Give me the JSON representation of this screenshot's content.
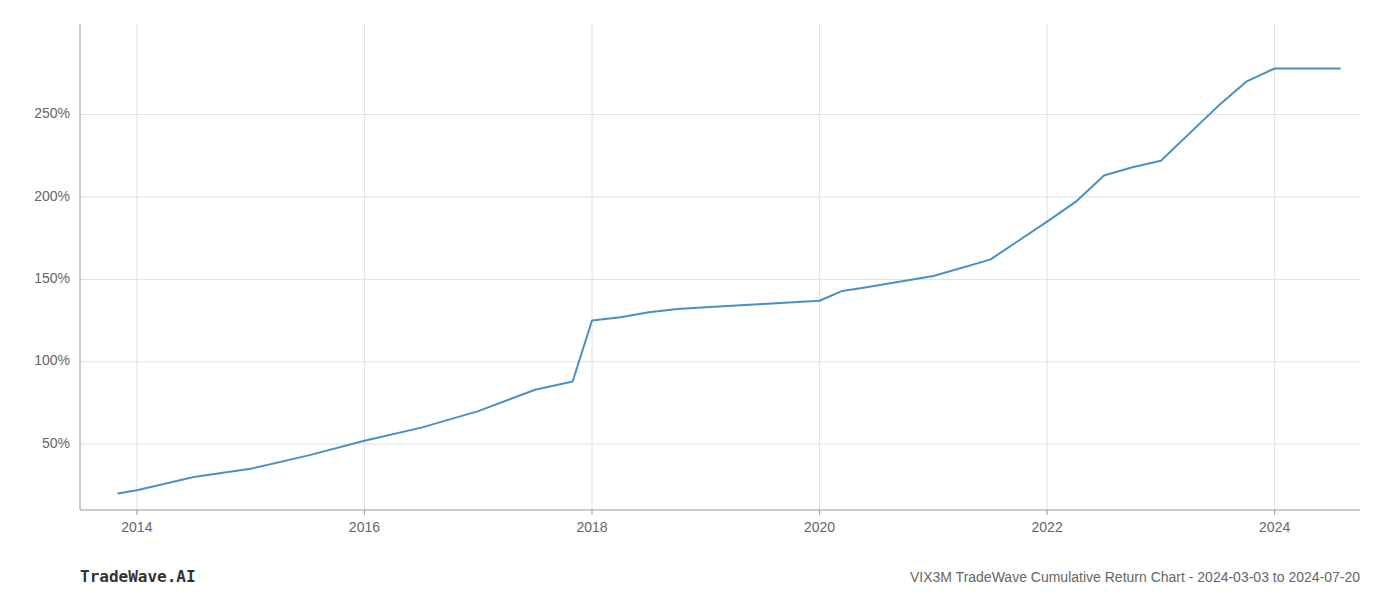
{
  "chart_data": {
    "type": "line",
    "title": "VIX3M TradeWave Cumulative Return Chart - 2024-03-03 to 2024-07-20",
    "annotations": [
      "TradeWave.AI"
    ],
    "color": "#4a90c4",
    "grid": true,
    "x": [
      2013.83,
      2014.0,
      2014.5,
      2015.0,
      2015.5,
      2016.0,
      2016.5,
      2017.0,
      2017.5,
      2017.83,
      2018.0,
      2018.25,
      2018.5,
      2018.75,
      2019.0,
      2019.5,
      2020.0,
      2020.2,
      2020.4,
      2021.0,
      2021.5,
      2022.0,
      2022.25,
      2022.5,
      2022.75,
      2023.0,
      2023.5,
      2023.75,
      2024.0,
      2024.58
    ],
    "values": [
      20,
      22,
      30,
      35,
      43,
      52,
      60,
      70,
      83,
      88,
      125,
      127,
      130,
      132,
      133,
      135,
      137,
      143,
      145,
      152,
      162,
      185,
      197,
      213,
      218,
      222,
      255,
      270,
      278,
      278
    ],
    "xlim": [
      2013.5,
      2024.75
    ],
    "ylim": [
      10,
      305
    ],
    "xticks": [
      2014,
      2016,
      2018,
      2020,
      2022,
      2024
    ],
    "yticks": [
      {
        "value": 50,
        "label": "50%"
      },
      {
        "value": 100,
        "label": "100%"
      },
      {
        "value": 150,
        "label": "150%"
      },
      {
        "value": 200,
        "label": "200%"
      },
      {
        "value": 250,
        "label": "250%"
      }
    ]
  }
}
